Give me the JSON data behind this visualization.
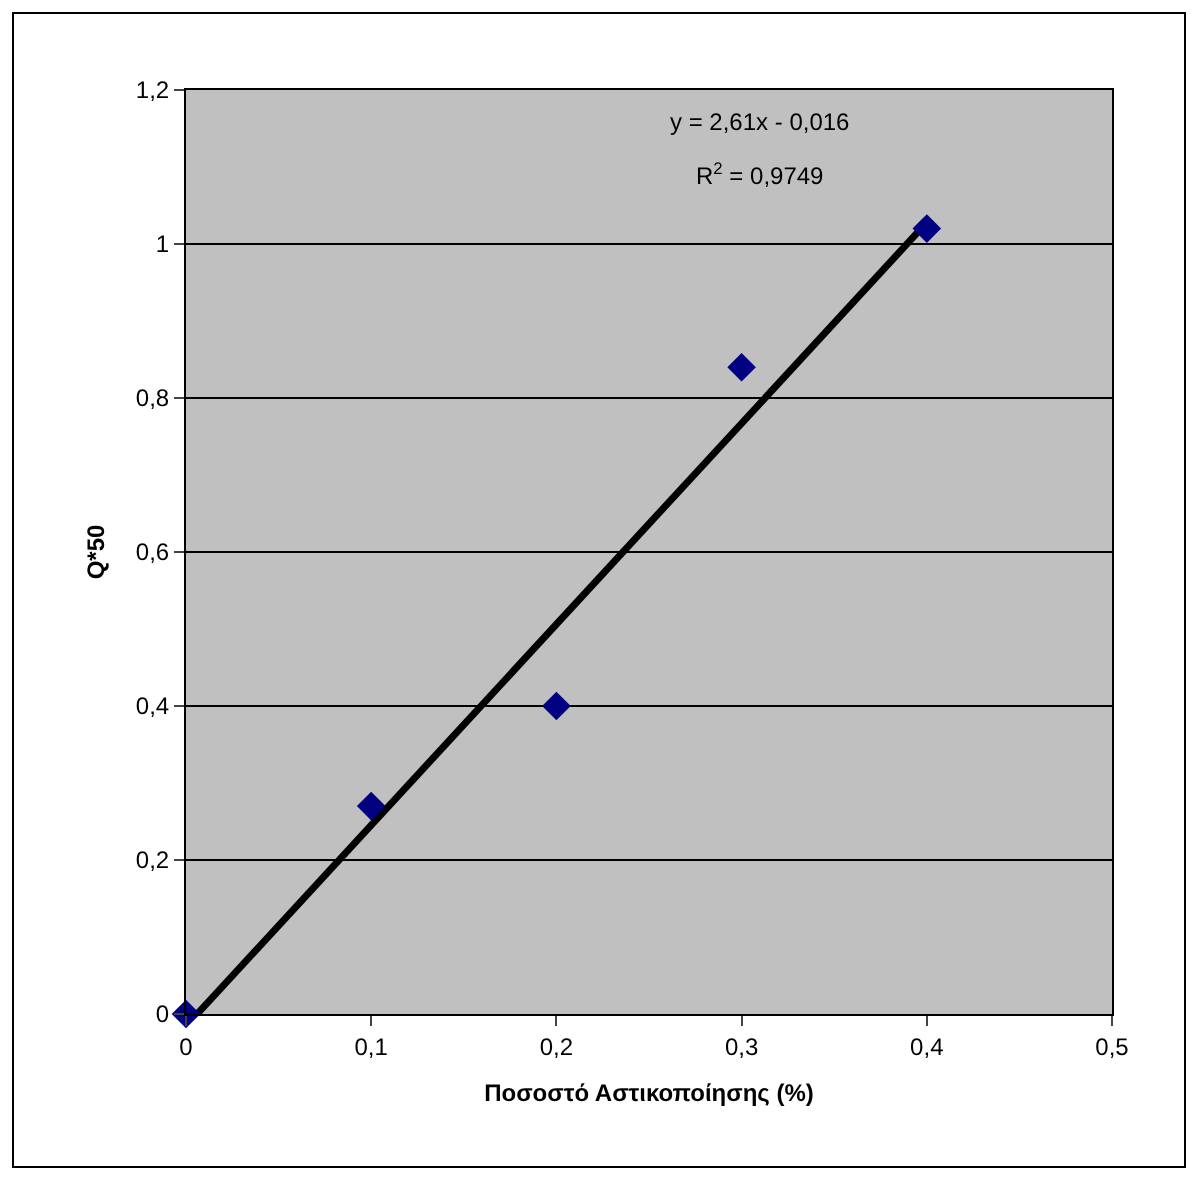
{
  "chart_data": {
    "type": "scatter",
    "xlabel": "Ποσοστό Αστικοποίησης (%)",
    "ylabel": "Q*50",
    "annotations": [
      "y = 2,61x - 0,016",
      "R$^{2}$ = 0,9749"
    ],
    "marker": "diamond",
    "grid": "y",
    "xlim": [
      0,
      0.5
    ],
    "ylim": [
      0,
      1.2
    ],
    "xticks": [
      0,
      {
        "value": 0.1,
        "label": "0,1"
      },
      {
        "value": 0.2,
        "label": "0,2"
      },
      {
        "value": 0.3,
        "label": "0,3"
      },
      {
        "value": 0.4,
        "label": "0,4"
      },
      {
        "value": 0.5,
        "label": "0,5"
      }
    ],
    "yticks": [
      0,
      {
        "value": 0.2,
        "label": "0,2"
      },
      {
        "value": 0.4,
        "label": "0,4"
      },
      {
        "value": 0.6,
        "label": "0,6"
      },
      {
        "value": 0.8,
        "label": "0,8"
      },
      1,
      {
        "value": 1.2,
        "label": "1,2"
      }
    ],
    "series": [
      {
        "color": "#000080",
        "x": [
          0,
          0.1,
          0.2,
          0.3,
          0.4
        ],
        "values": [
          0,
          0.27,
          0.4,
          0.84,
          1.02
        ]
      },
      {
        "type": "line",
        "marker": "none",
        "color": "#000000",
        "x": [
          0.006,
          0.4
        ],
        "values": [
          0,
          1.028
        ]
      }
    ]
  }
}
